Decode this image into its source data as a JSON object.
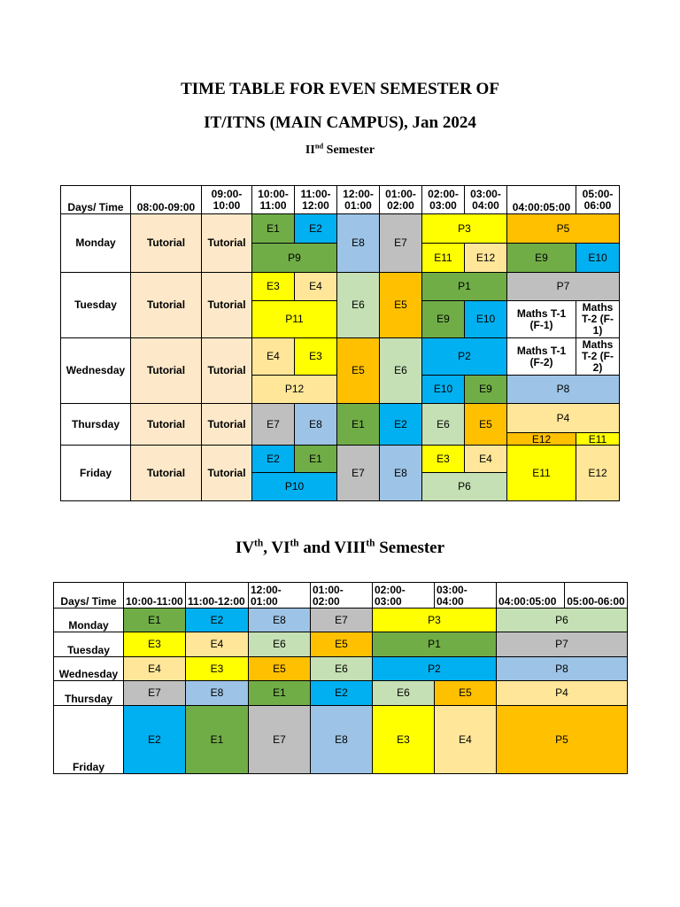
{
  "doc": {
    "title_line1": "TIME TABLE FOR EVEN SEMESTER OF",
    "title_line2": "IT/ITNS (MAIN CAMPUS), Jan 2024",
    "sem2_roman": "II",
    "sem2_sup": "nd",
    "sem2_word": " Semester",
    "sem_other_a": "IV",
    "sem_other_a_sup": "th",
    "sem_other_b": ", VI",
    "sem_other_b_sup": "th",
    "sem_other_c": " and VIII",
    "sem_other_c_sup": "th",
    "sem_other_d": " Semester"
  },
  "colors": {
    "tutorial": "#fde9c9",
    "green": "#70ad47",
    "blue": "#00b0f0",
    "lightblue": "#9dc3e6",
    "gray": "#bfbfbf",
    "yellow": "#ffff00",
    "orange": "#ffc000",
    "lightgreen": "#c5e0b4",
    "peach": "#ffe699"
  },
  "table1": {
    "headers": [
      "Days/ Time",
      "08:00-09:00",
      "09:00-10:00",
      "10:00-11:00",
      "11:00-12:00",
      "12:00-01:00",
      "01:00-02:00",
      "02:00-03:00",
      "03:00-04:00",
      "04:00:05:00",
      "05:00-06:00"
    ],
    "days": [
      "Monday",
      "Tuesday",
      "Wednesday",
      "Thursday",
      "Friday"
    ],
    "tutorial": "Tutorial",
    "monday": {
      "e1": "E1",
      "e2": "E2",
      "e8": "E8",
      "e7": "E7",
      "p3": "P3",
      "p5": "P5",
      "p9": "P9",
      "e11": "E11",
      "e12": "E12",
      "e9": "E9",
      "e10": "E10"
    },
    "tuesday": {
      "e3": "E3",
      "e4": "E4",
      "e6": "E6",
      "e5": "E5",
      "p1": "P1",
      "p7": "P7",
      "p11": "P11",
      "e9": "E9",
      "e10": "E10",
      "m1": "Maths T-1 (F-1)",
      "m2": "Maths T-2 (F-1)"
    },
    "wednesday": {
      "e4": "E4",
      "e3": "E3",
      "e5": "E5",
      "e6": "E6",
      "p2": "P2",
      "m1": "Maths T-1 (F-2)",
      "m2": "Maths T-2 (F-2)",
      "p12": "P12",
      "e10": "E10",
      "e9": "E9",
      "p8": "P8"
    },
    "thursday": {
      "e7": "E7",
      "e8": "E8",
      "e1": "E1",
      "e2": "E2",
      "e6": "E6",
      "e5": "E5",
      "p4": "P4",
      "e12": "E12",
      "e11": "E11"
    },
    "friday": {
      "e2": "E2",
      "e1": "E1",
      "e7": "E7",
      "e8": "E8",
      "e3": "E3",
      "e4": "E4",
      "e11": "E11",
      "e12": "E12",
      "p10": "P10",
      "p6": "P6"
    }
  },
  "table2": {
    "headers": [
      "Days/ Time",
      "10:00-11:00",
      "11:00-12:00",
      "12:00-01:00",
      "01:00-02:00",
      "02:00-03:00",
      "03:00-04:00",
      "04:00:05:00",
      "05:00-06:00"
    ],
    "days": [
      "Monday",
      "Tuesday",
      "Wednesday",
      "Thursday",
      "Friday"
    ],
    "monday": [
      "E1",
      "E2",
      "E8",
      "E7",
      "P3",
      "P6"
    ],
    "tuesday": [
      "E3",
      "E4",
      "E6",
      "E5",
      "P1",
      "P7"
    ],
    "wednesday": [
      "E4",
      "E3",
      "E5",
      "E6",
      "P2",
      "P8"
    ],
    "thursday": [
      "E7",
      "E8",
      "E1",
      "E2",
      "E6",
      "E5",
      "P4"
    ],
    "friday": [
      "E2",
      "E1",
      "E7",
      "E8",
      "E3",
      "E4",
      "P5"
    ]
  }
}
